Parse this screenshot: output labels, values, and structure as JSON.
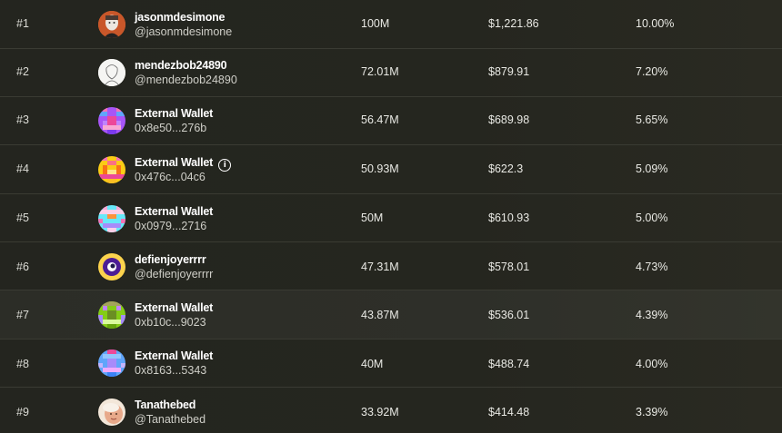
{
  "rows": [
    {
      "rank": "#1",
      "name": "jasonmdesimone",
      "handle": "@jasonmdesimone",
      "amount": "100M",
      "value": "$1,221.86",
      "share": "10.00%",
      "avatar": "photo-avatar",
      "info": false
    },
    {
      "rank": "#2",
      "name": "mendezbob24890",
      "handle": "@mendezbob24890",
      "amount": "72.01M",
      "value": "$879.91",
      "share": "7.20%",
      "avatar": "sketch-avatar",
      "info": false
    },
    {
      "rank": "#3",
      "name": "External Wallet",
      "handle": "0x8e50...276b",
      "amount": "56.47M",
      "value": "$689.98",
      "share": "5.65%",
      "avatar": "pixel-avatar-purple",
      "info": false
    },
    {
      "rank": "#4",
      "name": "External Wallet",
      "handle": "0x476c...04c6",
      "amount": "50.93M",
      "value": "$622.3",
      "share": "5.09%",
      "avatar": "pixel-avatar-yellow",
      "info": true
    },
    {
      "rank": "#5",
      "name": "External Wallet",
      "handle": "0x0979...2716",
      "amount": "50M",
      "value": "$610.93",
      "share": "5.00%",
      "avatar": "pixel-avatar-cyan",
      "info": false
    },
    {
      "rank": "#6",
      "name": "defienjoyerrrr",
      "handle": "@defienjoyerrrr",
      "amount": "47.31M",
      "value": "$578.01",
      "share": "4.73%",
      "avatar": "eye-avatar",
      "info": false
    },
    {
      "rank": "#7",
      "name": "External Wallet",
      "handle": "0xb10c...9023",
      "amount": "43.87M",
      "value": "$536.01",
      "share": "4.39%",
      "avatar": "pixel-avatar-olive",
      "info": false
    },
    {
      "rank": "#8",
      "name": "External Wallet",
      "handle": "0x8163...5343",
      "amount": "40M",
      "value": "$488.74",
      "share": "4.00%",
      "avatar": "pixel-avatar-blue",
      "info": false
    },
    {
      "rank": "#9",
      "name": "Tanathebed",
      "handle": "@Tanathebed",
      "amount": "33.92M",
      "value": "$414.48",
      "share": "3.39%",
      "avatar": "face-avatar",
      "info": false
    }
  ],
  "highlight_row": "#7",
  "colors": {
    "background": "#1e1f19",
    "row_divider": "#3a3b33",
    "text": "#e9e9e4"
  }
}
